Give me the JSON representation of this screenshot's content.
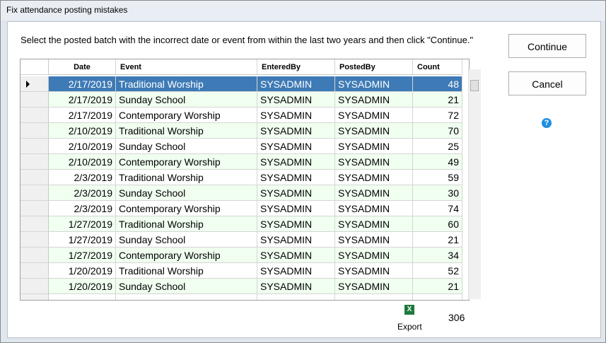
{
  "window": {
    "title": "Fix attendance posting mistakes"
  },
  "instructions": "Select the posted batch with the incorrect date or event from within the last two years and then click \"Continue.\"",
  "buttons": {
    "continue": "Continue",
    "cancel": "Cancel"
  },
  "table": {
    "columns": [
      "Date",
      "Event",
      "EnteredBy",
      "PostedBy",
      "Count"
    ],
    "rows": [
      [
        "2/17/2019",
        "Traditional Worship",
        "SYSADMIN",
        "SYSADMIN",
        "48"
      ],
      [
        "2/17/2019",
        "Sunday School",
        "SYSADMIN",
        "SYSADMIN",
        "21"
      ],
      [
        "2/17/2019",
        "Contemporary Worship",
        "SYSADMIN",
        "SYSADMIN",
        "72"
      ],
      [
        "2/10/2019",
        "Traditional Worship",
        "SYSADMIN",
        "SYSADMIN",
        "70"
      ],
      [
        "2/10/2019",
        "Sunday School",
        "SYSADMIN",
        "SYSADMIN",
        "25"
      ],
      [
        "2/10/2019",
        "Contemporary Worship",
        "SYSADMIN",
        "SYSADMIN",
        "49"
      ],
      [
        "2/3/2019",
        "Traditional Worship",
        "SYSADMIN",
        "SYSADMIN",
        "59"
      ],
      [
        "2/3/2019",
        "Sunday School",
        "SYSADMIN",
        "SYSADMIN",
        "30"
      ],
      [
        "2/3/2019",
        "Contemporary Worship",
        "SYSADMIN",
        "SYSADMIN",
        "74"
      ],
      [
        "1/27/2019",
        "Traditional Worship",
        "SYSADMIN",
        "SYSADMIN",
        "60"
      ],
      [
        "1/27/2019",
        "Sunday School",
        "SYSADMIN",
        "SYSADMIN",
        "21"
      ],
      [
        "1/27/2019",
        "Contemporary Worship",
        "SYSADMIN",
        "SYSADMIN",
        "34"
      ],
      [
        "1/20/2019",
        "Traditional Worship",
        "SYSADMIN",
        "SYSADMIN",
        "52"
      ],
      [
        "1/20/2019",
        "Sunday School",
        "SYSADMIN",
        "SYSADMIN",
        "21"
      ]
    ]
  },
  "footer": {
    "export": "Export",
    "total": "306"
  }
}
